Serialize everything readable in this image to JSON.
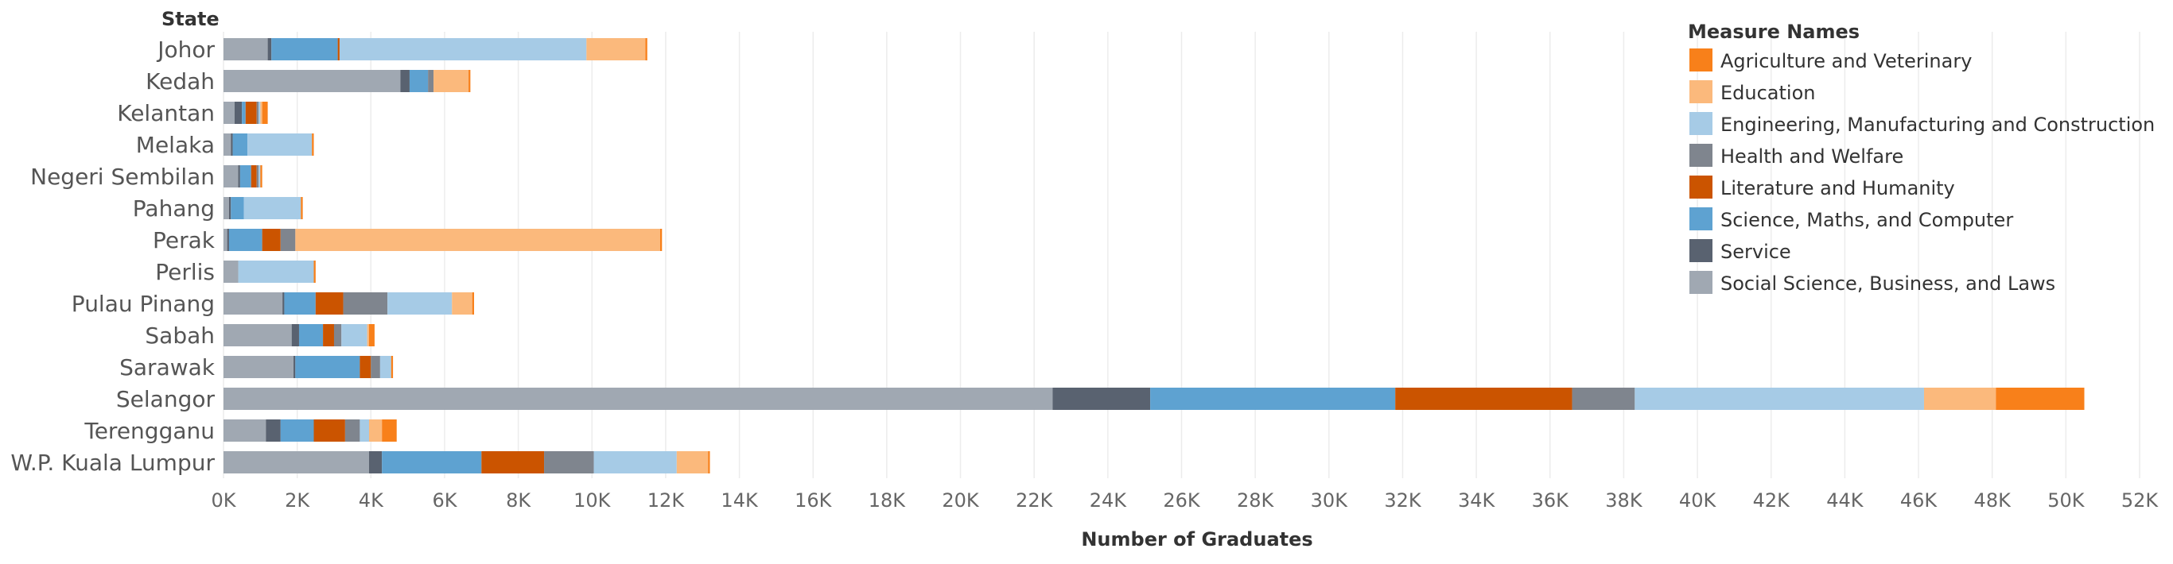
{
  "chart_data": {
    "type": "bar",
    "orientation": "horizontal",
    "stacked": true,
    "row_header": "State",
    "xlabel": "Number of Graduates",
    "xlim": [
      0,
      52000
    ],
    "x_tick_step": 2000,
    "x_tick_labels": [
      "0K",
      "2K",
      "4K",
      "6K",
      "8K",
      "10K",
      "12K",
      "14K",
      "16K",
      "18K",
      "20K",
      "22K",
      "24K",
      "26K",
      "28K",
      "30K",
      "32K",
      "34K",
      "36K",
      "38K",
      "40K",
      "42K",
      "44K",
      "46K",
      "48K",
      "50K",
      "52K"
    ],
    "grid": "vertical",
    "legend_title": "Measure Names",
    "legend_position": "top-right",
    "categories": [
      "Johor",
      "Kedah",
      "Kelantan",
      "Melaka",
      "Negeri Sembilan",
      "Pahang",
      "Perak",
      "Perlis",
      "Pulau Pinang",
      "Sabah",
      "Sarawak",
      "Selangor",
      "Terengganu",
      "W.P. Kuala Lumpur"
    ],
    "series": [
      {
        "name": "Social Science, Business, and Laws",
        "color": "#a0a8b2",
        "values": [
          1200,
          4800,
          300,
          200,
          400,
          150,
          100,
          400,
          1600,
          1850,
          1900,
          22500,
          1150,
          3950
        ]
      },
      {
        "name": "Service",
        "color": "#596270",
        "values": [
          100,
          250,
          200,
          50,
          50,
          50,
          50,
          0,
          50,
          200,
          50,
          2650,
          400,
          350
        ]
      },
      {
        "name": "Science, Maths, and Computer",
        "color": "#5ea2d1",
        "values": [
          1800,
          500,
          100,
          400,
          300,
          350,
          900,
          0,
          850,
          650,
          1750,
          6650,
          900,
          2700
        ]
      },
      {
        "name": "Literature and Humanity",
        "color": "#cb5400",
        "values": [
          50,
          0,
          300,
          0,
          150,
          0,
          500,
          0,
          750,
          300,
          300,
          4800,
          850,
          1700
        ]
      },
      {
        "name": "Health and Welfare",
        "color": "#7f858e",
        "values": [
          0,
          150,
          50,
          0,
          50,
          0,
          400,
          0,
          1200,
          200,
          250,
          1700,
          400,
          1350
        ]
      },
      {
        "name": "Engineering, Manufacturing and Construction",
        "color": "#a6cbe6",
        "values": [
          6700,
          0,
          50,
          1750,
          50,
          1550,
          0,
          2050,
          1750,
          700,
          300,
          7850,
          250,
          2250
        ]
      },
      {
        "name": "Education",
        "color": "#fbb97c",
        "values": [
          1600,
          950,
          50,
          0,
          0,
          0,
          9900,
          0,
          550,
          50,
          0,
          1950,
          350,
          850
        ]
      },
      {
        "name": "Agriculture and Veterinary",
        "color": "#f8801a",
        "values": [
          50,
          50,
          150,
          50,
          50,
          50,
          50,
          50,
          50,
          150,
          50,
          2400,
          400,
          50
        ]
      }
    ],
    "legend_order": [
      "Agriculture and Veterinary",
      "Education",
      "Engineering, Manufacturing and Construction",
      "Health and Welfare",
      "Literature and Humanity",
      "Science, Maths, and Computer",
      "Service",
      "Social Science, Business, and Laws"
    ]
  }
}
